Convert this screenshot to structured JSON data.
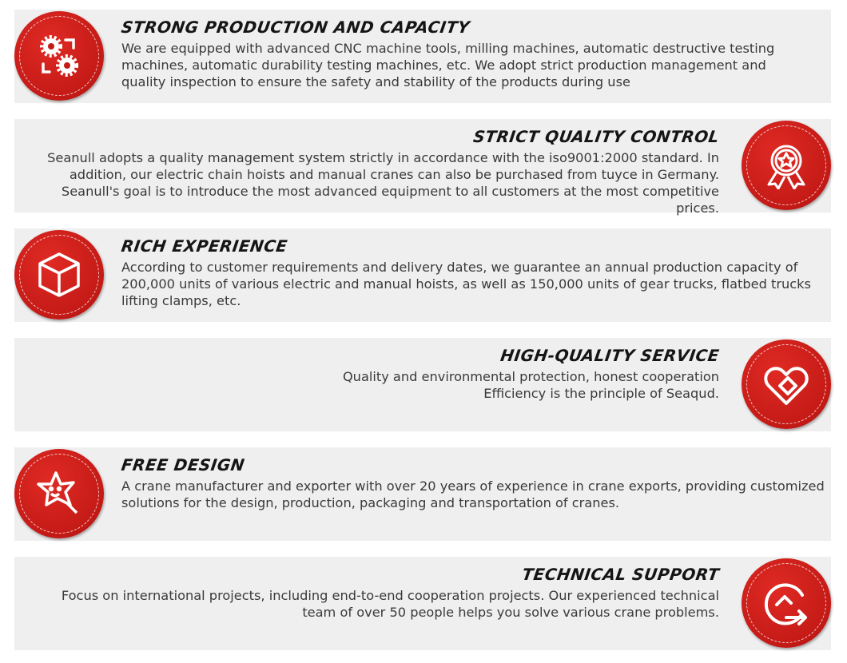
{
  "accent_color": "#d42020",
  "panel_color": "#efefef",
  "features": [
    {
      "title": "STRONG PRODUCTION AND CAPACITY",
      "icon": "gears-cycle-icon",
      "lines": [
        "We are equipped with advanced CNC machine tools, milling machines, automatic destructive testing",
        "machines, automatic durability testing machines, etc. We adopt strict production management and",
        "quality inspection to ensure the safety and stability of the products during use"
      ]
    },
    {
      "title": "STRICT QUALITY CONTROL",
      "icon": "award-ribbon-icon",
      "lines": [
        "Seanull adopts a quality management system strictly in accordance with the iso9001:2000 standard. In",
        "addition, our electric chain hoists and manual cranes can also be purchased from tuyce in Germany.",
        "Seanull's goal is to introduce the most advanced equipment to all customers at the most competitive prices."
      ]
    },
    {
      "title": "RICH EXPERIENCE",
      "icon": "box-icon",
      "lines": [
        "According to customer requirements and delivery dates, we guarantee an annual production capacity of",
        "200,000 units of various electric and manual hoists, as well as 150,000 units of gear trucks, flatbed trucks",
        "lifting clamps, etc."
      ]
    },
    {
      "title": "HIGH-QUALITY SERVICE",
      "icon": "heart-link-icon",
      "lines": [
        "Quality and environmental protection, honest cooperation",
        "Efficiency is the principle of Seaqud."
      ]
    },
    {
      "title": "FREE DESIGN",
      "icon": "star-magnifier-icon",
      "lines": [
        "A crane manufacturer and exporter with over 20 years of experience in crane exports, providing customized",
        "solutions for the design, production, packaging and transportation of cranes."
      ]
    },
    {
      "title": "TECHNICAL SUPPORT",
      "icon": "support-arrow-icon",
      "lines": [
        "Focus on international projects, including end-to-end cooperation projects. Our experienced technical",
        "team of over 50 people helps you solve various crane problems."
      ]
    }
  ]
}
